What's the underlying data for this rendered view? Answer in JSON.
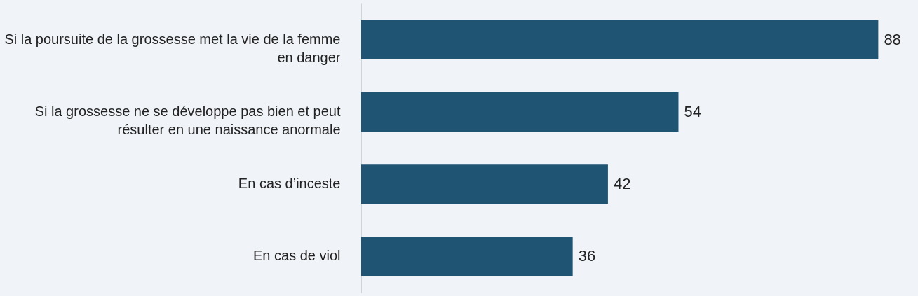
{
  "chart_data": {
    "type": "bar",
    "orientation": "horizontal",
    "categories": [
      "Si la poursuite de la grossesse met la vie de la femme en danger",
      "Si la grossesse ne se développe pas bien et peut résulter en une naissance anormale",
      "En cas d’inceste",
      "En cas de viol"
    ],
    "values": [
      88,
      54,
      42,
      36
    ],
    "color": "#1f5573",
    "data_labels": true
  }
}
